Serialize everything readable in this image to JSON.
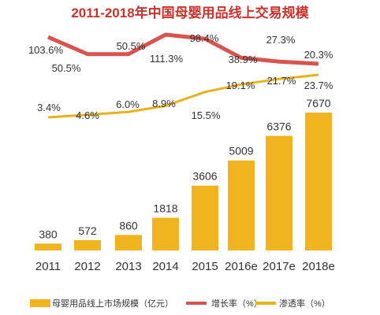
{
  "chart_data": {
    "type": "bar",
    "title": "2011-2018年中国母婴用品线上交易规模",
    "categories": [
      "2011",
      "2012",
      "2013",
      "2014",
      "2015",
      "2016e",
      "2017e",
      "2018e"
    ],
    "series": [
      {
        "name": "母婴用品线上市场规模（亿元）",
        "type": "bar",
        "color": "#f0b41e",
        "values": [
          380,
          572,
          860,
          1818,
          3606,
          5009,
          6376,
          7670
        ]
      },
      {
        "name": "增长率（%）",
        "type": "line",
        "color": "#d9534f",
        "values": [
          103.6,
          50.5,
          50.5,
          111.3,
          98.4,
          38.9,
          27.3,
          20.3
        ],
        "labels": [
          "103.6%",
          "50.5%",
          "50.5%",
          "111.3%",
          "98.4%",
          "38.9%",
          "27.3%",
          "20.3%"
        ]
      },
      {
        "name": "渗透率（%）",
        "type": "line",
        "color": "#e8b21a",
        "values": [
          3.4,
          4.6,
          6.0,
          8.9,
          15.5,
          19.1,
          21.7,
          23.7
        ],
        "labels": [
          "3.4%",
          "4.6%",
          "6.0%",
          "8.9%",
          "15.5%",
          "19.1%",
          "21.7%",
          "23.7%"
        ]
      }
    ],
    "legend": "bottom"
  }
}
